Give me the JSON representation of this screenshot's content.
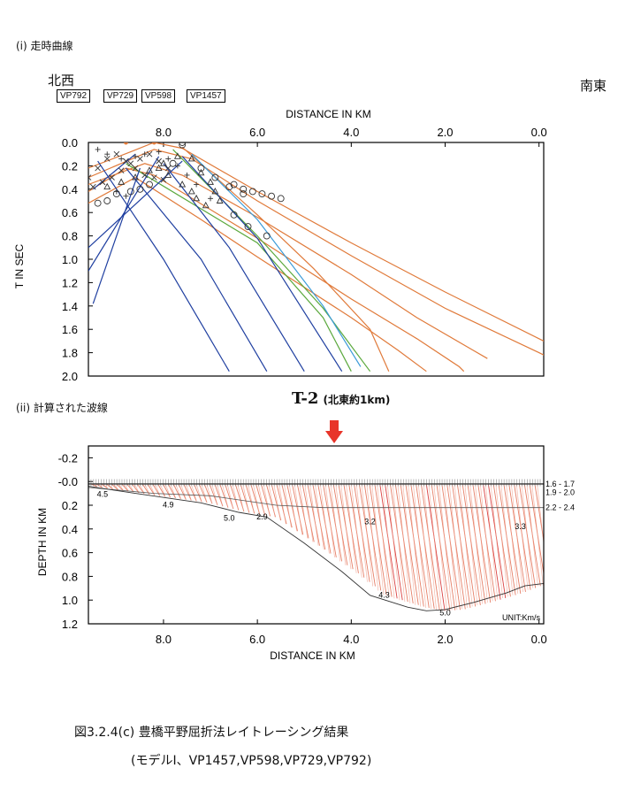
{
  "section1_label": "(i) 走時曲線",
  "section2_label": "(ii) 計算された波線",
  "northwest": "北西",
  "southeast": "南東",
  "vp_boxes": [
    "VP792",
    "VP729",
    "VP598",
    "VP1457"
  ],
  "line_label": "T-2",
  "line_note": "(北東約1km)",
  "caption_title": "図3.2.4(c) 豊橋平野屈折法レイトレーシング結果",
  "caption_sub": "(モデルⅠ、VP1457,VP598,VP729,VP792)",
  "colors": {
    "orange": "#e07a3a",
    "blue": "#1f3fa0",
    "green": "#5aa83c",
    "lightblue": "#3a9ad8",
    "ray": "#e0503a",
    "arrow": "#e8352a"
  },
  "chart_data": [
    {
      "type": "line",
      "xlabel": "DISTANCE IN KM",
      "ylabel": "T IN SEC",
      "x_ticks": [
        "8.0",
        "6.0",
        "4.0",
        "2.0",
        "0.0"
      ],
      "y_ticks": [
        "0.0",
        "0.2",
        "0.4",
        "0.6",
        "0.8",
        "1.0",
        "1.2",
        "1.4",
        "1.6",
        "1.8",
        "2.0"
      ],
      "xlim": [
        9.6,
        -0.1
      ],
      "ylim": [
        0.0,
        2.0
      ],
      "series": [
        {
          "color": "orange",
          "points": [
            [
              9.6,
              0.22
            ],
            [
              8.7,
              0.08
            ],
            [
              8.2,
              0.0
            ],
            [
              7.6,
              0.05
            ],
            [
              6.0,
              0.42
            ],
            [
              4.0,
              0.86
            ],
            [
              2.0,
              1.28
            ],
            [
              0.0,
              1.68
            ],
            [
              -0.1,
              1.7
            ]
          ]
        },
        {
          "color": "orange",
          "points": [
            [
              9.6,
              0.3
            ],
            [
              8.2,
              0.06
            ],
            [
              7.4,
              0.14
            ],
            [
              6.0,
              0.5
            ],
            [
              4.0,
              0.97
            ],
            [
              2.0,
              1.42
            ],
            [
              0.0,
              1.8
            ],
            [
              -0.1,
              1.82
            ]
          ]
        },
        {
          "color": "orange",
          "points": [
            [
              9.6,
              0.36
            ],
            [
              8.4,
              0.18
            ],
            [
              7.6,
              0.28
            ],
            [
              6.0,
              0.64
            ],
            [
              4.0,
              1.13
            ],
            [
              2.6,
              1.5
            ],
            [
              1.4,
              1.78
            ],
            [
              1.1,
              1.85
            ]
          ]
        },
        {
          "color": "orange",
          "points": [
            [
              9.6,
              0.42
            ],
            [
              8.8,
              0.22
            ],
            [
              8.2,
              0.28
            ],
            [
              6.0,
              0.82
            ],
            [
              4.0,
              1.34
            ],
            [
              2.6,
              1.68
            ],
            [
              1.7,
              1.92
            ],
            [
              1.6,
              1.96
            ]
          ]
        },
        {
          "color": "orange",
          "points": [
            [
              9.6,
              0.52
            ],
            [
              8.6,
              0.3
            ],
            [
              7.2,
              0.66
            ],
            [
              6.0,
              0.98
            ],
            [
              4.0,
              1.5
            ],
            [
              3.0,
              1.78
            ],
            [
              2.4,
              1.96
            ]
          ]
        },
        {
          "color": "orange",
          "points": [
            [
              7.6,
              0.04
            ],
            [
              6.0,
              0.62
            ],
            [
              4.8,
              1.08
            ],
            [
              3.6,
              1.6
            ],
            [
              3.2,
              1.96
            ]
          ]
        },
        {
          "color": "green",
          "points": [
            [
              7.8,
              0.06
            ],
            [
              6.0,
              0.8
            ],
            [
              4.6,
              1.42
            ],
            [
              3.6,
              1.96
            ]
          ]
        },
        {
          "color": "lightblue",
          "points": [
            [
              7.4,
              0.1
            ],
            [
              6.0,
              0.66
            ],
            [
              4.6,
              1.4
            ],
            [
              3.8,
              1.92
            ]
          ]
        },
        {
          "color": "green",
          "points": [
            [
              8.8,
              0.18
            ],
            [
              6.0,
              0.86
            ],
            [
              4.6,
              1.5
            ],
            [
              4.0,
              1.96
            ]
          ]
        },
        {
          "color": "blue",
          "points": [
            [
              7.6,
              0.12
            ],
            [
              6.0,
              0.82
            ],
            [
              4.2,
              1.96
            ]
          ]
        },
        {
          "color": "blue",
          "points": [
            [
              8.0,
              0.18
            ],
            [
              6.6,
              0.9
            ],
            [
              5.0,
              1.96
            ]
          ]
        },
        {
          "color": "blue",
          "points": [
            [
              8.8,
              0.22
            ],
            [
              7.2,
              1.0
            ],
            [
              5.8,
              1.96
            ]
          ]
        },
        {
          "color": "blue",
          "points": [
            [
              9.4,
              0.16
            ],
            [
              8.0,
              1.0
            ],
            [
              6.6,
              1.96
            ]
          ]
        },
        {
          "color": "blue",
          "points": [
            [
              8.6,
              0.1
            ],
            [
              9.5,
              0.4
            ]
          ]
        },
        {
          "color": "blue",
          "points": [
            [
              8.1,
              0.12
            ],
            [
              9.6,
              1.1
            ]
          ]
        },
        {
          "color": "blue",
          "points": [
            [
              8.5,
              0.22
            ],
            [
              9.5,
              1.38
            ]
          ]
        },
        {
          "color": "blue",
          "points": [
            [
              7.6,
              0.16
            ],
            [
              9.6,
              0.9
            ]
          ]
        }
      ],
      "markers": {
        "circle_orange": [
          [
            8.8,
            0.0
          ],
          [
            8.2,
            0.0
          ]
        ],
        "circle": [
          [
            9.4,
            0.52
          ],
          [
            9.2,
            0.5
          ],
          [
            9.0,
            0.44
          ],
          [
            8.7,
            0.42
          ],
          [
            8.5,
            0.4
          ],
          [
            8.3,
            0.36
          ],
          [
            7.6,
            0.0
          ],
          [
            7.6,
            0.02
          ],
          [
            7.8,
            0.18
          ],
          [
            7.2,
            0.22
          ],
          [
            6.9,
            0.3
          ],
          [
            6.6,
            0.38
          ],
          [
            6.3,
            0.44
          ],
          [
            6.5,
            0.62
          ],
          [
            6.2,
            0.72
          ],
          [
            5.8,
            0.8
          ],
          [
            6.5,
            0.36
          ],
          [
            6.3,
            0.4
          ],
          [
            6.1,
            0.42
          ],
          [
            5.9,
            0.44
          ],
          [
            5.7,
            0.46
          ],
          [
            5.5,
            0.48
          ]
        ],
        "triangle": [
          [
            9.2,
            0.38
          ],
          [
            8.9,
            0.34
          ],
          [
            8.6,
            0.3
          ],
          [
            8.3,
            0.24
          ],
          [
            8.0,
            0.18
          ],
          [
            7.7,
            0.12
          ],
          [
            7.4,
            0.14
          ],
          [
            7.2,
            0.26
          ],
          [
            7.0,
            0.34
          ],
          [
            6.9,
            0.42
          ],
          [
            6.8,
            0.5
          ],
          [
            8.1,
            0.22
          ],
          [
            7.9,
            0.28
          ],
          [
            7.6,
            0.36
          ],
          [
            7.4,
            0.42
          ],
          [
            7.3,
            0.48
          ],
          [
            7.1,
            0.54
          ]
        ],
        "cross": [
          [
            9.6,
            0.3
          ],
          [
            9.4,
            0.22
          ],
          [
            9.2,
            0.14
          ],
          [
            9.0,
            0.1
          ],
          [
            8.8,
            0.16
          ],
          [
            8.6,
            0.22
          ],
          [
            8.4,
            0.28
          ],
          [
            8.2,
            0.3
          ],
          [
            8.0,
            0.32
          ],
          [
            9.5,
            0.38
          ],
          [
            9.3,
            0.34
          ],
          [
            9.1,
            0.3
          ],
          [
            8.9,
            0.24
          ],
          [
            8.7,
            0.18
          ],
          [
            8.5,
            0.14
          ],
          [
            8.3,
            0.1
          ],
          [
            8.1,
            0.16
          ],
          [
            7.9,
            0.22
          ]
        ],
        "plus": [
          [
            9.4,
            0.06
          ],
          [
            9.2,
            0.1
          ],
          [
            8.9,
            0.14
          ],
          [
            8.6,
            0.12
          ],
          [
            8.4,
            0.1
          ],
          [
            8.1,
            0.08
          ],
          [
            7.9,
            0.14
          ],
          [
            7.7,
            0.2
          ],
          [
            7.5,
            0.28
          ],
          [
            7.3,
            0.36
          ],
          [
            9.0,
            0.42
          ],
          [
            8.8,
            0.46
          ],
          [
            7.0,
            0.48
          ]
        ]
      }
    },
    {
      "type": "area",
      "xlabel": "DISTANCE IN KM",
      "ylabel": "DEPTH IN KM",
      "x_ticks": [
        "8.0",
        "6.0",
        "4.0",
        "2.0",
        "0.0"
      ],
      "y_ticks": [
        "-0.2",
        "-0.0",
        "0.2",
        "0.4",
        "0.6",
        "0.8",
        "1.0",
        "1.2"
      ],
      "xlim": [
        9.6,
        -0.1
      ],
      "ylim": [
        -0.3,
        1.2
      ],
      "unit_label": "UNIT:Km/s",
      "layer_labels": [
        "1.6 - 1.7",
        "1.9 - 2.0",
        "2.2 - 2.4"
      ],
      "velocity_labels": [
        {
          "text": "4.5",
          "x": 9.3,
          "y": 0.13
        },
        {
          "text": "4.9",
          "x": 7.9,
          "y": 0.22
        },
        {
          "text": "5.0",
          "x": 6.6,
          "y": 0.33
        },
        {
          "text": "2.9",
          "x": 5.9,
          "y": 0.32
        },
        {
          "text": "3.2",
          "x": 3.6,
          "y": 0.36
        },
        {
          "text": "3.3",
          "x": 0.4,
          "y": 0.4
        },
        {
          "text": "4.3",
          "x": 3.3,
          "y": 0.98
        },
        {
          "text": "5.0",
          "x": 2.0,
          "y": 1.13
        }
      ],
      "surface": [
        [
          9.6,
          0.02
        ],
        [
          -0.1,
          0.02
        ]
      ],
      "layer_boundary": [
        [
          9.6,
          0.05
        ],
        [
          8.2,
          0.1
        ],
        [
          7.0,
          0.12
        ],
        [
          5.6,
          0.2
        ],
        [
          4.6,
          0.22
        ],
        [
          2.0,
          0.22
        ],
        [
          -0.1,
          0.22
        ]
      ],
      "basement": [
        [
          9.6,
          0.04
        ],
        [
          8.6,
          0.1
        ],
        [
          7.2,
          0.18
        ],
        [
          6.4,
          0.26
        ],
        [
          5.8,
          0.3
        ],
        [
          5.0,
          0.52
        ],
        [
          4.2,
          0.76
        ],
        [
          3.6,
          0.96
        ],
        [
          2.8,
          1.06
        ],
        [
          2.4,
          1.09
        ],
        [
          2.0,
          1.08
        ],
        [
          1.4,
          1.02
        ],
        [
          0.7,
          0.94
        ],
        [
          0.3,
          0.88
        ],
        [
          -0.1,
          0.86
        ]
      ]
    }
  ]
}
